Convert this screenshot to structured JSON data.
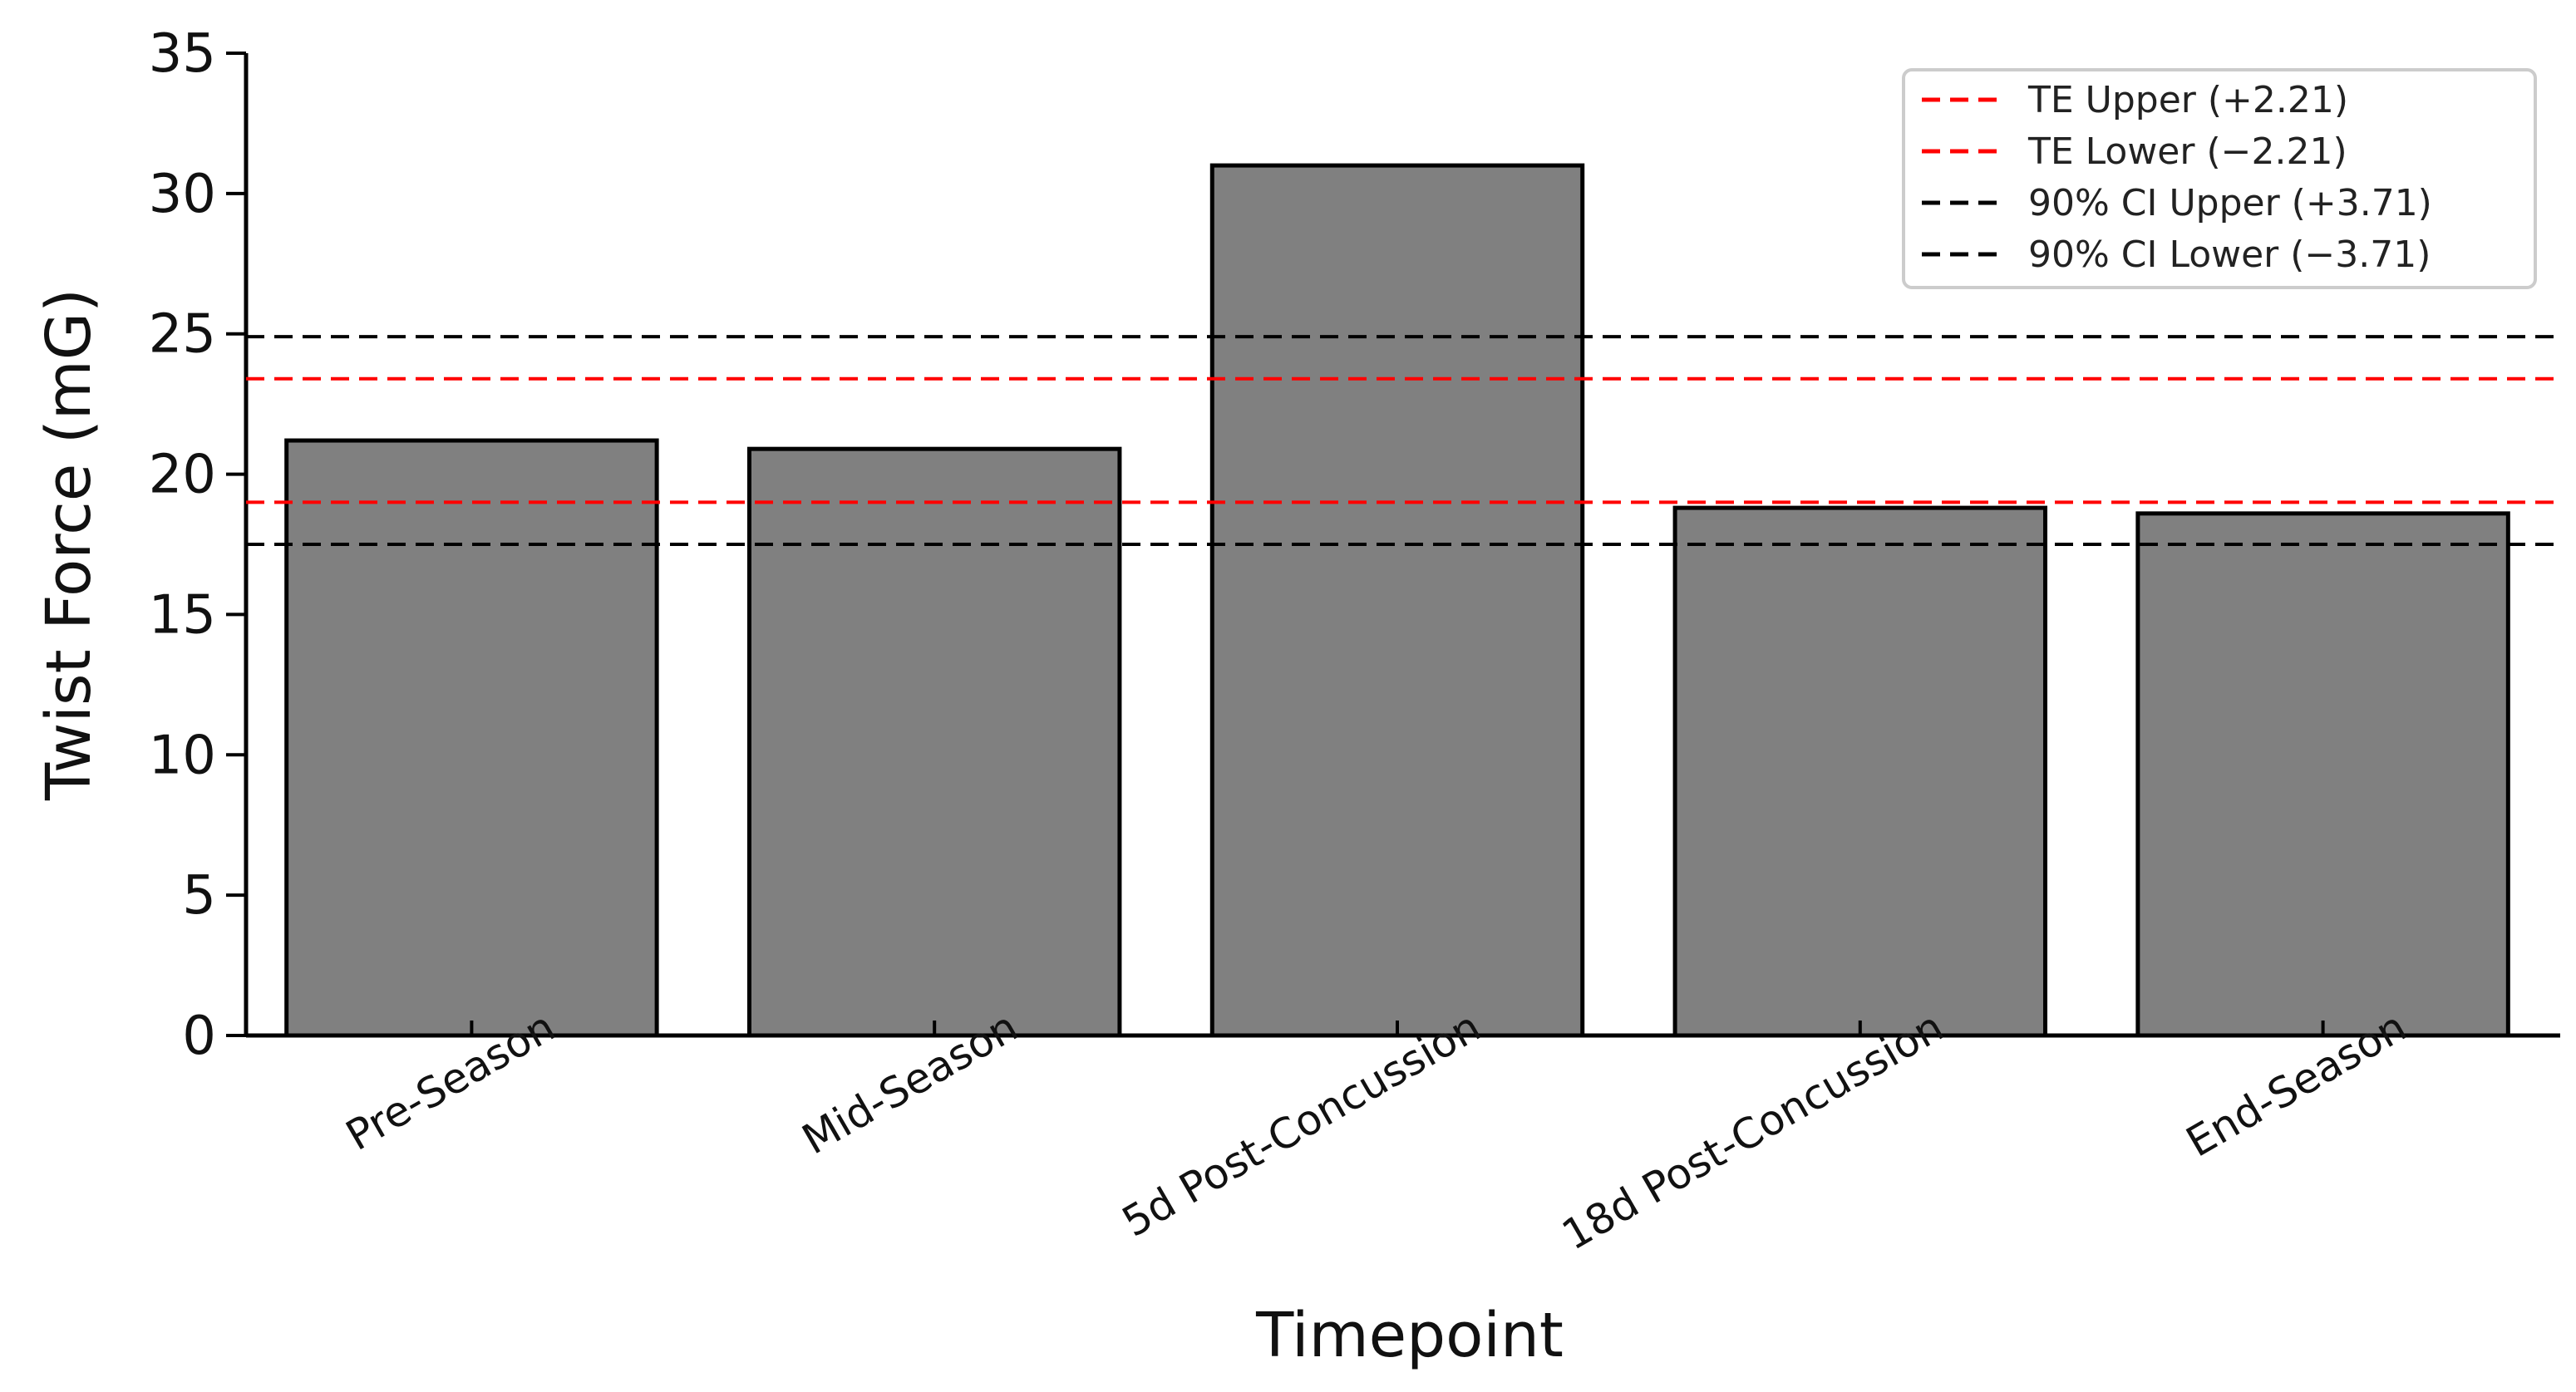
{
  "chart_data": {
    "type": "bar",
    "xlabel": "Timepoint",
    "ylabel": "Twist Force (mG)",
    "ylim": [
      0,
      35
    ],
    "yticks": [
      0,
      5,
      10,
      15,
      20,
      25,
      30,
      35
    ],
    "categories": [
      "Pre-Season",
      "Mid-Season",
      "5d Post-Concussion",
      "18d Post-Concussion",
      "End-Season"
    ],
    "values": [
      21.2,
      20.9,
      31.0,
      18.8,
      18.6
    ],
    "bar_color": "#808080",
    "bar_edge_color": "#000000",
    "reference_lines": [
      {
        "label": "TE Upper (+2.21)",
        "value": 23.4,
        "color": "#ff0000",
        "style": "dashed"
      },
      {
        "label": "TE Lower (−2.21)",
        "value": 19.0,
        "color": "#ff0000",
        "style": "dashed"
      },
      {
        "label": "90% CI Upper (+3.71)",
        "value": 24.9,
        "color": "#000000",
        "style": "dashed"
      },
      {
        "label": "90% CI Lower (−3.71)",
        "value": 17.5,
        "color": "#000000",
        "style": "dashed"
      }
    ],
    "legend_position": "top-right",
    "grid": false
  }
}
